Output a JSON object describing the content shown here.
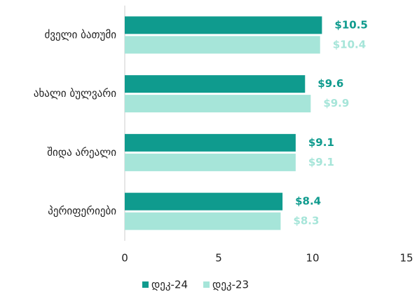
{
  "chart_data": {
    "type": "barh",
    "categories": [
      "ძველი ბათუმი",
      "ახალი ბულვარი",
      "შიდა არეალი",
      "პერიფერიები"
    ],
    "series": [
      {
        "name": "დეკ-24",
        "color": "#0f9b8e",
        "values": [
          10.5,
          9.6,
          9.1,
          8.4
        ],
        "value_labels": [
          "$10.5",
          "$9.6",
          "$9.1",
          "$8.4"
        ]
      },
      {
        "name": "დეკ-23",
        "color": "#a6e5d9",
        "values": [
          10.4,
          9.9,
          9.1,
          8.3
        ],
        "value_labels": [
          "$10.4",
          "$9.9",
          "$9.1",
          "$8.3"
        ]
      }
    ],
    "xlim": [
      0,
      15
    ],
    "xticks": [
      0,
      5,
      10,
      15
    ],
    "legend": "bottom"
  }
}
